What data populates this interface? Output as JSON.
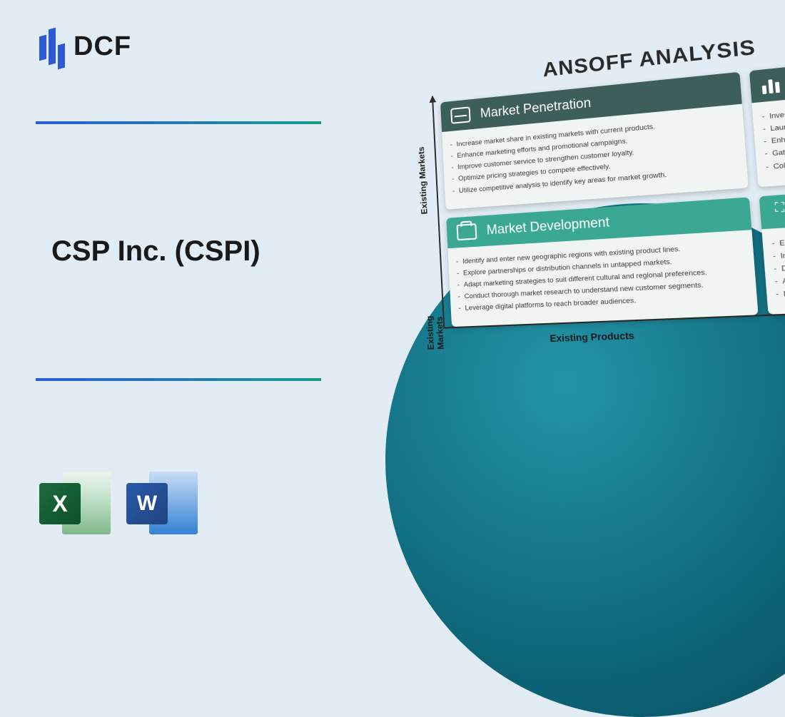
{
  "logo": {
    "text": "DCF"
  },
  "title": "CSP Inc. (CSPI)",
  "colors": {
    "background": "#e1ecf4",
    "logo_blue": "#2c5bd4",
    "gradient_start": "#2c5bd4",
    "gradient_end": "#1a9b88",
    "circle_gradient": [
      "#2394a8",
      "#0d6578",
      "#074a5a"
    ],
    "header_dark": "#3d5e5b",
    "header_teal": "#3aa892",
    "card_bg": "#f0f5f4"
  },
  "file_icons": {
    "excel": {
      "letter": "X"
    },
    "word": {
      "letter": "W"
    }
  },
  "matrix": {
    "title": "ANSOFF ANALYSIS",
    "y_axis_labels": [
      "Existing Markets",
      "Existing Markets"
    ],
    "x_axis_label": "Existing Products",
    "cards": [
      {
        "title": "Market Penetration",
        "items": [
          "Increase market share in existing markets with current products.",
          "Enhance marketing efforts and promotional campaigns.",
          "Improve customer service to strengthen customer loyalty.",
          "Optimize pricing strategies to compete effectively.",
          "Utilize competitive analysis to identify key areas for market growth."
        ]
      },
      {
        "title": "",
        "items": [
          "Invest in research and",
          "Launch new products",
          "Enhance product fe",
          "Gather customer fe",
          "Collaborate with t"
        ]
      },
      {
        "title": "Market Development",
        "items": [
          "Identify and enter new geographic regions with existing product lines.",
          "Explore partnerships or distribution channels in untapped markets.",
          "Adapt marketing strategies to suit different cultural and regional preferences.",
          "Conduct thorough market research to understand new customer segments.",
          "Leverage digital platforms to reach broader audiences."
        ]
      },
      {
        "title": "",
        "items": [
          "Explore opp",
          "Invest in ac",
          "Develop n",
          "Assess ris",
          "Leverage"
        ]
      }
    ]
  }
}
